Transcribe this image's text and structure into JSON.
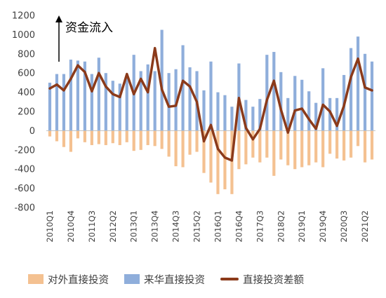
{
  "chart_data": {
    "type": "bar",
    "annotation": "资金流入",
    "colors": {
      "outward": "#F4C191",
      "inward": "#8FAEDB",
      "net": "#8B3A1A"
    },
    "ylim": [
      -800,
      1200
    ],
    "yticks": [
      -800,
      -600,
      -400,
      -200,
      0,
      200,
      400,
      600,
      800,
      1000,
      1200
    ],
    "categories": [
      "2010Q1",
      "2010Q2",
      "2010Q3",
      "2010Q4",
      "2011Q1",
      "2011Q2",
      "2011Q3",
      "2011Q4",
      "2012Q1",
      "2012Q2",
      "2012Q3",
      "2012Q4",
      "2013Q1",
      "2013Q2",
      "2013Q3",
      "2013Q4",
      "2014Q1",
      "2014Q2",
      "2014Q3",
      "2014Q4",
      "2015Q1",
      "2015Q2",
      "2015Q3",
      "2015Q4",
      "2016Q1",
      "2016Q2",
      "2016Q3",
      "2016Q4",
      "2017Q1",
      "2017Q2",
      "2017Q3",
      "2017Q4",
      "2018Q1",
      "2018Q2",
      "2018Q3",
      "2018Q4",
      "2019Q1",
      "2019Q2",
      "2019Q3",
      "2019Q4",
      "2020Q1",
      "2020Q2",
      "2020Q3",
      "2020Q4",
      "2021Q1",
      "2021Q2",
      "2021Q3"
    ],
    "xtick_labels": [
      "2010Q1",
      "2010Q4",
      "2011Q3",
      "2012Q2",
      "2013Q1",
      "2013Q4",
      "2014Q3",
      "2015Q2",
      "2016Q1",
      "2016Q4",
      "2017Q3",
      "2018Q2",
      "2019Q1",
      "2019Q4",
      "2020Q3",
      "2021Q2"
    ],
    "series": [
      {
        "name": "对外直接投资",
        "type": "bar",
        "values": [
          -60,
          -110,
          -170,
          -220,
          -80,
          -120,
          -150,
          -140,
          -150,
          -130,
          -150,
          -120,
          -210,
          -200,
          -150,
          -160,
          -190,
          -270,
          -370,
          -380,
          -250,
          -220,
          -440,
          -540,
          -660,
          -610,
          -660,
          -400,
          -350,
          -280,
          -330,
          -280,
          -470,
          -300,
          -360,
          -400,
          -380,
          -360,
          -330,
          -380,
          -240,
          -290,
          -310,
          -280,
          -160,
          -330,
          -300
        ]
      },
      {
        "name": "来华直接投资",
        "type": "bar",
        "values": [
          500,
          590,
          590,
          740,
          730,
          720,
          590,
          760,
          600,
          520,
          490,
          570,
          790,
          620,
          690,
          620,
          1050,
          600,
          640,
          890,
          660,
          620,
          420,
          720,
          400,
          370,
          250,
          700,
          320,
          250,
          330,
          790,
          820,
          610,
          340,
          570,
          530,
          410,
          290,
          650,
          340,
          340,
          580,
          860,
          980,
          800,
          720
        ]
      },
      {
        "name": "直接投资差额",
        "type": "line",
        "values": [
          440,
          480,
          420,
          540,
          680,
          610,
          410,
          600,
          460,
          380,
          350,
          590,
          380,
          540,
          400,
          860,
          430,
          250,
          260,
          520,
          460,
          300,
          -110,
          60,
          -190,
          -280,
          -310,
          340,
          30,
          -90,
          20,
          320,
          520,
          220,
          -20,
          210,
          230,
          120,
          20,
          270,
          200,
          50,
          260,
          560,
          750,
          450,
          420
        ]
      }
    ]
  }
}
